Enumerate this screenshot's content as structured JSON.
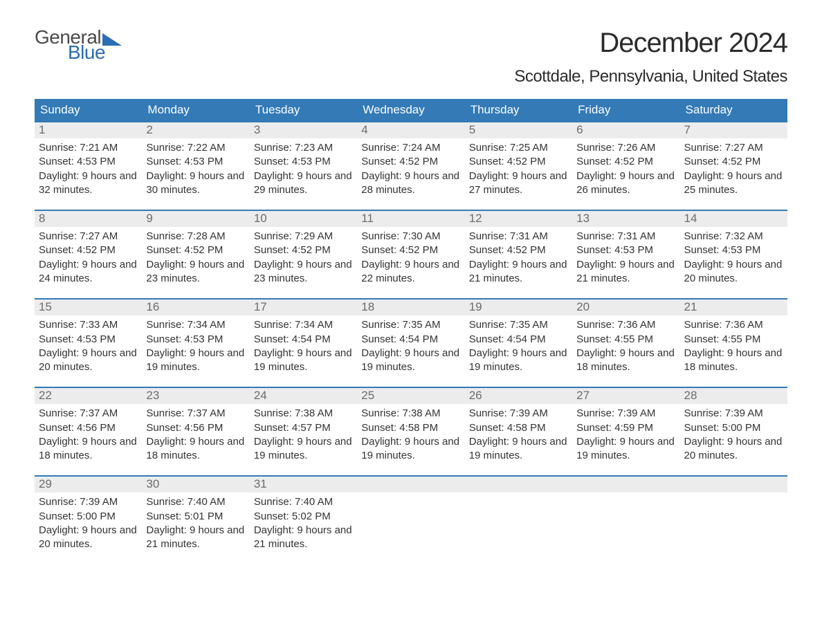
{
  "brand": {
    "word1": "General",
    "word2": "Blue",
    "word1_color": "#4a4a4a",
    "word2_color": "#2a6db5",
    "flag_color": "#2a6db5"
  },
  "title": "December 2024",
  "location": "Scottdale, Pennsylvania, United States",
  "colors": {
    "header_bg": "#337ab7",
    "header_text": "#ffffff",
    "daynum_bg": "#ececec",
    "daynum_text": "#6b6b6b",
    "body_text": "#333333",
    "rule": "#337ab7",
    "page_bg": "#ffffff"
  },
  "typography": {
    "title_fontsize": 40,
    "location_fontsize": 24,
    "weekday_fontsize": 17,
    "daynum_fontsize": 17,
    "body_fontsize": 15
  },
  "weekdays": [
    "Sunday",
    "Monday",
    "Tuesday",
    "Wednesday",
    "Thursday",
    "Friday",
    "Saturday"
  ],
  "weeks": [
    [
      {
        "n": "1",
        "sr": "Sunrise: 7:21 AM",
        "ss": "Sunset: 4:53 PM",
        "dl": "Daylight: 9 hours and 32 minutes."
      },
      {
        "n": "2",
        "sr": "Sunrise: 7:22 AM",
        "ss": "Sunset: 4:53 PM",
        "dl": "Daylight: 9 hours and 30 minutes."
      },
      {
        "n": "3",
        "sr": "Sunrise: 7:23 AM",
        "ss": "Sunset: 4:53 PM",
        "dl": "Daylight: 9 hours and 29 minutes."
      },
      {
        "n": "4",
        "sr": "Sunrise: 7:24 AM",
        "ss": "Sunset: 4:52 PM",
        "dl": "Daylight: 9 hours and 28 minutes."
      },
      {
        "n": "5",
        "sr": "Sunrise: 7:25 AM",
        "ss": "Sunset: 4:52 PM",
        "dl": "Daylight: 9 hours and 27 minutes."
      },
      {
        "n": "6",
        "sr": "Sunrise: 7:26 AM",
        "ss": "Sunset: 4:52 PM",
        "dl": "Daylight: 9 hours and 26 minutes."
      },
      {
        "n": "7",
        "sr": "Sunrise: 7:27 AM",
        "ss": "Sunset: 4:52 PM",
        "dl": "Daylight: 9 hours and 25 minutes."
      }
    ],
    [
      {
        "n": "8",
        "sr": "Sunrise: 7:27 AM",
        "ss": "Sunset: 4:52 PM",
        "dl": "Daylight: 9 hours and 24 minutes."
      },
      {
        "n": "9",
        "sr": "Sunrise: 7:28 AM",
        "ss": "Sunset: 4:52 PM",
        "dl": "Daylight: 9 hours and 23 minutes."
      },
      {
        "n": "10",
        "sr": "Sunrise: 7:29 AM",
        "ss": "Sunset: 4:52 PM",
        "dl": "Daylight: 9 hours and 23 minutes."
      },
      {
        "n": "11",
        "sr": "Sunrise: 7:30 AM",
        "ss": "Sunset: 4:52 PM",
        "dl": "Daylight: 9 hours and 22 minutes."
      },
      {
        "n": "12",
        "sr": "Sunrise: 7:31 AM",
        "ss": "Sunset: 4:52 PM",
        "dl": "Daylight: 9 hours and 21 minutes."
      },
      {
        "n": "13",
        "sr": "Sunrise: 7:31 AM",
        "ss": "Sunset: 4:53 PM",
        "dl": "Daylight: 9 hours and 21 minutes."
      },
      {
        "n": "14",
        "sr": "Sunrise: 7:32 AM",
        "ss": "Sunset: 4:53 PM",
        "dl": "Daylight: 9 hours and 20 minutes."
      }
    ],
    [
      {
        "n": "15",
        "sr": "Sunrise: 7:33 AM",
        "ss": "Sunset: 4:53 PM",
        "dl": "Daylight: 9 hours and 20 minutes."
      },
      {
        "n": "16",
        "sr": "Sunrise: 7:34 AM",
        "ss": "Sunset: 4:53 PM",
        "dl": "Daylight: 9 hours and 19 minutes."
      },
      {
        "n": "17",
        "sr": "Sunrise: 7:34 AM",
        "ss": "Sunset: 4:54 PM",
        "dl": "Daylight: 9 hours and 19 minutes."
      },
      {
        "n": "18",
        "sr": "Sunrise: 7:35 AM",
        "ss": "Sunset: 4:54 PM",
        "dl": "Daylight: 9 hours and 19 minutes."
      },
      {
        "n": "19",
        "sr": "Sunrise: 7:35 AM",
        "ss": "Sunset: 4:54 PM",
        "dl": "Daylight: 9 hours and 19 minutes."
      },
      {
        "n": "20",
        "sr": "Sunrise: 7:36 AM",
        "ss": "Sunset: 4:55 PM",
        "dl": "Daylight: 9 hours and 18 minutes."
      },
      {
        "n": "21",
        "sr": "Sunrise: 7:36 AM",
        "ss": "Sunset: 4:55 PM",
        "dl": "Daylight: 9 hours and 18 minutes."
      }
    ],
    [
      {
        "n": "22",
        "sr": "Sunrise: 7:37 AM",
        "ss": "Sunset: 4:56 PM",
        "dl": "Daylight: 9 hours and 18 minutes."
      },
      {
        "n": "23",
        "sr": "Sunrise: 7:37 AM",
        "ss": "Sunset: 4:56 PM",
        "dl": "Daylight: 9 hours and 18 minutes."
      },
      {
        "n": "24",
        "sr": "Sunrise: 7:38 AM",
        "ss": "Sunset: 4:57 PM",
        "dl": "Daylight: 9 hours and 19 minutes."
      },
      {
        "n": "25",
        "sr": "Sunrise: 7:38 AM",
        "ss": "Sunset: 4:58 PM",
        "dl": "Daylight: 9 hours and 19 minutes."
      },
      {
        "n": "26",
        "sr": "Sunrise: 7:39 AM",
        "ss": "Sunset: 4:58 PM",
        "dl": "Daylight: 9 hours and 19 minutes."
      },
      {
        "n": "27",
        "sr": "Sunrise: 7:39 AM",
        "ss": "Sunset: 4:59 PM",
        "dl": "Daylight: 9 hours and 19 minutes."
      },
      {
        "n": "28",
        "sr": "Sunrise: 7:39 AM",
        "ss": "Sunset: 5:00 PM",
        "dl": "Daylight: 9 hours and 20 minutes."
      }
    ],
    [
      {
        "n": "29",
        "sr": "Sunrise: 7:39 AM",
        "ss": "Sunset: 5:00 PM",
        "dl": "Daylight: 9 hours and 20 minutes."
      },
      {
        "n": "30",
        "sr": "Sunrise: 7:40 AM",
        "ss": "Sunset: 5:01 PM",
        "dl": "Daylight: 9 hours and 21 minutes."
      },
      {
        "n": "31",
        "sr": "Sunrise: 7:40 AM",
        "ss": "Sunset: 5:02 PM",
        "dl": "Daylight: 9 hours and 21 minutes."
      },
      null,
      null,
      null,
      null
    ]
  ]
}
